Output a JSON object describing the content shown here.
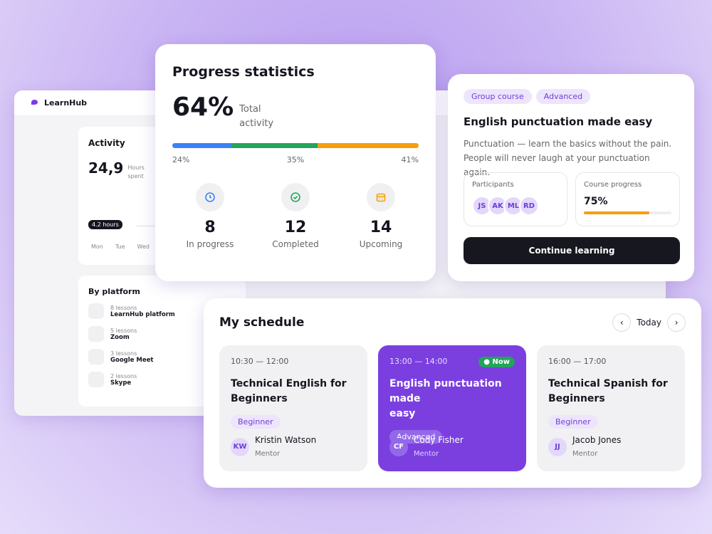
{
  "app": {
    "brand": "LearnHub",
    "activity": {
      "title": "Activity",
      "value": "24,9",
      "unit": [
        "Hours",
        "spent"
      ],
      "tooltip": "4.2 hours",
      "days": [
        "Mon",
        "Tue",
        "Wed"
      ]
    },
    "platform": {
      "title": "By platform",
      "items": [
        {
          "count": "8 lessons",
          "name": "LearnHub platform"
        },
        {
          "count": "5 lessons",
          "name": "Zoom"
        },
        {
          "count": "3 lessons",
          "name": "Google Meet"
        },
        {
          "count": "2 lessons",
          "name": "Skype"
        }
      ]
    }
  },
  "progress": {
    "title": "Progress statistics",
    "percent": "64%",
    "caption": [
      "Total",
      "activity"
    ],
    "segments": [
      {
        "value": 24,
        "label": "24%",
        "color": "#3b82f6"
      },
      {
        "value": 35,
        "label": "35%",
        "color": "#22a55a"
      },
      {
        "value": 41,
        "label": "41%",
        "color": "#f59e0b"
      }
    ],
    "stats": [
      {
        "value": "8",
        "label": "In progress"
      },
      {
        "value": "12",
        "label": "Completed"
      },
      {
        "value": "14",
        "label": "Upcoming"
      }
    ]
  },
  "course": {
    "tags": [
      "Group course",
      "Advanced"
    ],
    "title": "English punctuation made easy",
    "description": [
      "Punctuation — learn the basics without the pain.",
      "People will never laugh at your punctuation again."
    ],
    "participants_label": "Participants",
    "participants": [
      "JS",
      "AK",
      "ML",
      "RD"
    ],
    "progress_label": "Course progress",
    "progress": {
      "value": 75,
      "label": "75%"
    },
    "button": "Continue learning"
  },
  "schedule": {
    "title": "My schedule",
    "nav": "Today",
    "lessons": [
      {
        "time": "10:30 — 12:00",
        "title": [
          "Technical English for",
          "Beginners"
        ],
        "level": "Beginner",
        "initials": "KW",
        "mentor": "Kristin Watson",
        "role": "Mentor"
      },
      {
        "time": "13:00 — 14:00",
        "badge": "Now",
        "title": [
          "English punctuation made",
          "easy"
        ],
        "level": "Advanced",
        "initials": "CF",
        "mentor": "Cody Fisher",
        "role": "Mentor"
      },
      {
        "time": "16:00 — 17:00",
        "title": [
          "Technical Spanish for",
          "Beginners"
        ],
        "level": "Beginner",
        "initials": "JJ",
        "mentor": "Jacob Jones",
        "role": "Mentor"
      }
    ]
  }
}
